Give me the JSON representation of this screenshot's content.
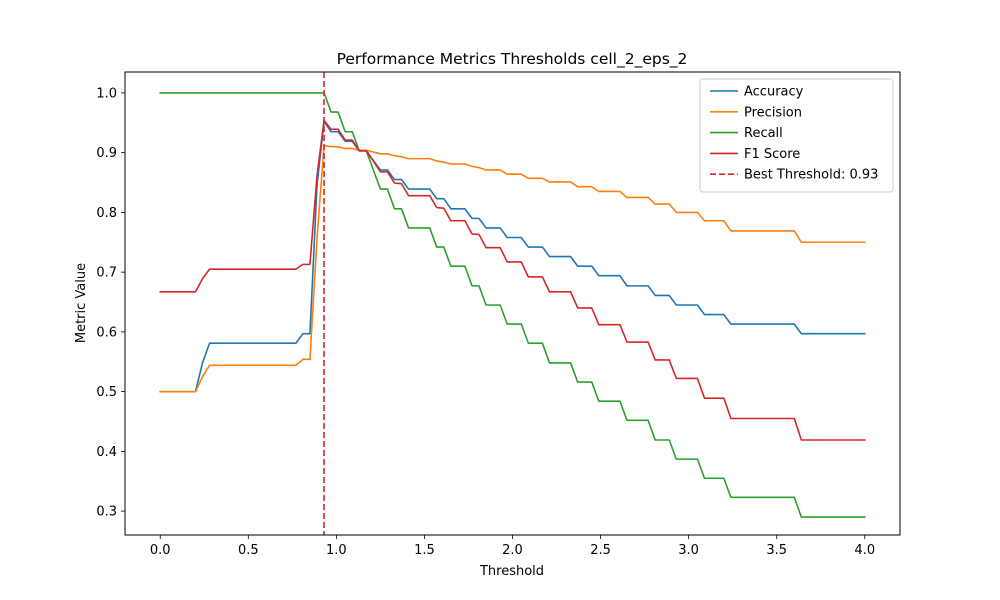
{
  "chart_data": {
    "type": "line",
    "title": "Performance Metrics Thresholds cell_2_eps_2",
    "xlabel": "Threshold",
    "ylabel": "Metric Value",
    "xlim": [
      -0.2,
      4.2
    ],
    "ylim": [
      0.26,
      1.035
    ],
    "xticks": [
      0.0,
      0.5,
      1.0,
      1.5,
      2.0,
      2.5,
      3.0,
      3.5,
      4.0
    ],
    "xtick_labels": [
      "0.0",
      "0.5",
      "1.0",
      "1.5",
      "2.0",
      "2.5",
      "3.0",
      "3.5",
      "4.0"
    ],
    "yticks": [
      0.3,
      0.4,
      0.5,
      0.6,
      0.7,
      0.8,
      0.9,
      1.0
    ],
    "ytick_labels": [
      "0.3",
      "0.4",
      "0.5",
      "0.6",
      "0.7",
      "0.8",
      "0.9",
      "1.0"
    ],
    "grid": false,
    "legend_position": "top-right",
    "best_threshold": {
      "label": "Best Threshold: 0.93",
      "x": 0.93,
      "color": "#d62728"
    },
    "series": [
      {
        "name": "Accuracy",
        "color": "#1f77b4",
        "points": [
          [
            0.0,
            0.5
          ],
          [
            0.2,
            0.5
          ],
          [
            0.24,
            0.548
          ],
          [
            0.28,
            0.581
          ],
          [
            0.77,
            0.581
          ],
          [
            0.81,
            0.597
          ],
          [
            0.85,
            0.597
          ],
          [
            0.89,
            0.845
          ],
          [
            0.93,
            0.952
          ],
          [
            0.97,
            0.935
          ],
          [
            1.01,
            0.935
          ],
          [
            1.05,
            0.919
          ],
          [
            1.09,
            0.919
          ],
          [
            1.13,
            0.903
          ],
          [
            1.17,
            0.903
          ],
          [
            1.21,
            0.887
          ],
          [
            1.25,
            0.871
          ],
          [
            1.29,
            0.871
          ],
          [
            1.33,
            0.855
          ],
          [
            1.37,
            0.855
          ],
          [
            1.41,
            0.839
          ],
          [
            1.53,
            0.839
          ],
          [
            1.57,
            0.823
          ],
          [
            1.61,
            0.823
          ],
          [
            1.65,
            0.806
          ],
          [
            1.73,
            0.806
          ],
          [
            1.77,
            0.79
          ],
          [
            1.81,
            0.79
          ],
          [
            1.85,
            0.774
          ],
          [
            1.93,
            0.774
          ],
          [
            1.97,
            0.758
          ],
          [
            2.05,
            0.758
          ],
          [
            2.09,
            0.742
          ],
          [
            2.17,
            0.742
          ],
          [
            2.21,
            0.726
          ],
          [
            2.33,
            0.726
          ],
          [
            2.37,
            0.71
          ],
          [
            2.45,
            0.71
          ],
          [
            2.49,
            0.694
          ],
          [
            2.61,
            0.694
          ],
          [
            2.65,
            0.677
          ],
          [
            2.77,
            0.677
          ],
          [
            2.81,
            0.661
          ],
          [
            2.89,
            0.661
          ],
          [
            2.93,
            0.645
          ],
          [
            3.05,
            0.645
          ],
          [
            3.09,
            0.629
          ],
          [
            3.2,
            0.629
          ],
          [
            3.24,
            0.613
          ],
          [
            3.6,
            0.613
          ],
          [
            3.64,
            0.597
          ],
          [
            4.0,
            0.597
          ]
        ]
      },
      {
        "name": "Precision",
        "color": "#ff7f0e",
        "points": [
          [
            0.0,
            0.5
          ],
          [
            0.2,
            0.5
          ],
          [
            0.24,
            0.525
          ],
          [
            0.28,
            0.544
          ],
          [
            0.77,
            0.544
          ],
          [
            0.81,
            0.554
          ],
          [
            0.85,
            0.554
          ],
          [
            0.89,
            0.756
          ],
          [
            0.93,
            0.912
          ],
          [
            0.97,
            0.91
          ],
          [
            1.01,
            0.91
          ],
          [
            1.05,
            0.907
          ],
          [
            1.09,
            0.907
          ],
          [
            1.13,
            0.904
          ],
          [
            1.17,
            0.904
          ],
          [
            1.21,
            0.901
          ],
          [
            1.25,
            0.898
          ],
          [
            1.29,
            0.898
          ],
          [
            1.33,
            0.895
          ],
          [
            1.37,
            0.893
          ],
          [
            1.41,
            0.89
          ],
          [
            1.53,
            0.89
          ],
          [
            1.57,
            0.886
          ],
          [
            1.61,
            0.884
          ],
          [
            1.65,
            0.881
          ],
          [
            1.73,
            0.881
          ],
          [
            1.77,
            0.877
          ],
          [
            1.81,
            0.875
          ],
          [
            1.85,
            0.871
          ],
          [
            1.93,
            0.871
          ],
          [
            1.97,
            0.864
          ],
          [
            2.05,
            0.864
          ],
          [
            2.09,
            0.857
          ],
          [
            2.17,
            0.857
          ],
          [
            2.21,
            0.851
          ],
          [
            2.33,
            0.851
          ],
          [
            2.37,
            0.843
          ],
          [
            2.45,
            0.843
          ],
          [
            2.49,
            0.835
          ],
          [
            2.61,
            0.835
          ],
          [
            2.65,
            0.825
          ],
          [
            2.77,
            0.825
          ],
          [
            2.81,
            0.814
          ],
          [
            2.89,
            0.814
          ],
          [
            2.93,
            0.8
          ],
          [
            3.05,
            0.8
          ],
          [
            3.09,
            0.786
          ],
          [
            3.2,
            0.786
          ],
          [
            3.24,
            0.769
          ],
          [
            3.6,
            0.769
          ],
          [
            3.64,
            0.75
          ],
          [
            4.0,
            0.75
          ]
        ]
      },
      {
        "name": "Recall",
        "color": "#2ca02c",
        "points": [
          [
            0.0,
            1.0
          ],
          [
            0.93,
            1.0
          ],
          [
            0.97,
            0.968
          ],
          [
            1.01,
            0.968
          ],
          [
            1.05,
            0.935
          ],
          [
            1.09,
            0.935
          ],
          [
            1.13,
            0.903
          ],
          [
            1.17,
            0.903
          ],
          [
            1.21,
            0.871
          ],
          [
            1.25,
            0.839
          ],
          [
            1.29,
            0.839
          ],
          [
            1.33,
            0.806
          ],
          [
            1.37,
            0.806
          ],
          [
            1.41,
            0.774
          ],
          [
            1.53,
            0.774
          ],
          [
            1.57,
            0.742
          ],
          [
            1.61,
            0.742
          ],
          [
            1.65,
            0.71
          ],
          [
            1.73,
            0.71
          ],
          [
            1.77,
            0.677
          ],
          [
            1.81,
            0.677
          ],
          [
            1.85,
            0.645
          ],
          [
            1.93,
            0.645
          ],
          [
            1.97,
            0.613
          ],
          [
            2.05,
            0.613
          ],
          [
            2.09,
            0.581
          ],
          [
            2.17,
            0.581
          ],
          [
            2.21,
            0.548
          ],
          [
            2.33,
            0.548
          ],
          [
            2.37,
            0.516
          ],
          [
            2.45,
            0.516
          ],
          [
            2.49,
            0.484
          ],
          [
            2.61,
            0.484
          ],
          [
            2.65,
            0.452
          ],
          [
            2.77,
            0.452
          ],
          [
            2.81,
            0.419
          ],
          [
            2.89,
            0.419
          ],
          [
            2.93,
            0.387
          ],
          [
            3.05,
            0.387
          ],
          [
            3.09,
            0.355
          ],
          [
            3.2,
            0.355
          ],
          [
            3.24,
            0.323
          ],
          [
            3.6,
            0.323
          ],
          [
            3.64,
            0.29
          ],
          [
            4.0,
            0.29
          ]
        ]
      },
      {
        "name": "F1 Score",
        "color": "#d62728",
        "points": [
          [
            0.0,
            0.667
          ],
          [
            0.2,
            0.667
          ],
          [
            0.24,
            0.689
          ],
          [
            0.28,
            0.705
          ],
          [
            0.77,
            0.705
          ],
          [
            0.81,
            0.713
          ],
          [
            0.85,
            0.713
          ],
          [
            0.89,
            0.861
          ],
          [
            0.93,
            0.954
          ],
          [
            0.97,
            0.939
          ],
          [
            1.01,
            0.939
          ],
          [
            1.05,
            0.921
          ],
          [
            1.09,
            0.921
          ],
          [
            1.13,
            0.903
          ],
          [
            1.17,
            0.903
          ],
          [
            1.21,
            0.886
          ],
          [
            1.25,
            0.868
          ],
          [
            1.29,
            0.868
          ],
          [
            1.33,
            0.849
          ],
          [
            1.37,
            0.848
          ],
          [
            1.41,
            0.828
          ],
          [
            1.53,
            0.828
          ],
          [
            1.57,
            0.808
          ],
          [
            1.61,
            0.807
          ],
          [
            1.65,
            0.786
          ],
          [
            1.73,
            0.786
          ],
          [
            1.77,
            0.764
          ],
          [
            1.81,
            0.763
          ],
          [
            1.85,
            0.741
          ],
          [
            1.93,
            0.741
          ],
          [
            1.97,
            0.717
          ],
          [
            2.05,
            0.717
          ],
          [
            2.09,
            0.692
          ],
          [
            2.17,
            0.692
          ],
          [
            2.21,
            0.667
          ],
          [
            2.33,
            0.667
          ],
          [
            2.37,
            0.64
          ],
          [
            2.45,
            0.64
          ],
          [
            2.49,
            0.612
          ],
          [
            2.61,
            0.612
          ],
          [
            2.65,
            0.583
          ],
          [
            2.77,
            0.583
          ],
          [
            2.81,
            0.553
          ],
          [
            2.89,
            0.553
          ],
          [
            2.93,
            0.522
          ],
          [
            3.05,
            0.522
          ],
          [
            3.09,
            0.489
          ],
          [
            3.2,
            0.489
          ],
          [
            3.24,
            0.455
          ],
          [
            3.6,
            0.455
          ],
          [
            3.64,
            0.419
          ],
          [
            4.0,
            0.419
          ]
        ]
      }
    ]
  }
}
